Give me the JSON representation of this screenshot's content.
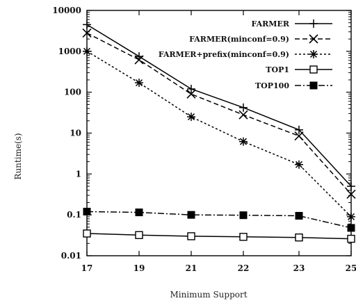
{
  "chart_data": {
    "type": "line",
    "title": "",
    "xlabel": "Minimum Support",
    "ylabel": "Runtime(s)",
    "y_scale": "log",
    "ylim": [
      0.01,
      10000
    ],
    "y_ticks": [
      0.01,
      0.1,
      1,
      10,
      100,
      1000,
      10000
    ],
    "y_tick_labels": [
      "0.01",
      "0.1",
      "1",
      "10",
      "100",
      "1000",
      "10000"
    ],
    "categories": [
      "17",
      "19",
      "21",
      "22",
      "23",
      "25"
    ],
    "grid": false,
    "legend_position": "top-right",
    "series": [
      {
        "name": "FARMER",
        "marker": "plus",
        "line": "solid",
        "values": [
          4500,
          750,
          120,
          42,
          12,
          0.5
        ]
      },
      {
        "name": "FARMER(minconf=0.9)",
        "marker": "x",
        "line": "dashed",
        "values": [
          2800,
          620,
          90,
          28,
          8.5,
          0.32
        ]
      },
      {
        "name": "FARMER+prefix(minconf=0.9)",
        "marker": "asterisk",
        "line": "dotted",
        "values": [
          1000,
          170,
          25,
          6.2,
          1.7,
          0.09
        ]
      },
      {
        "name": "TOP1",
        "marker": "open-square",
        "line": "solid",
        "values": [
          0.035,
          0.032,
          0.03,
          0.029,
          0.028,
          0.026
        ]
      },
      {
        "name": "TOP100",
        "marker": "filled-square",
        "line": "dashdot",
        "values": [
          0.12,
          0.115,
          0.1,
          0.098,
          0.095,
          0.048
        ]
      }
    ]
  }
}
